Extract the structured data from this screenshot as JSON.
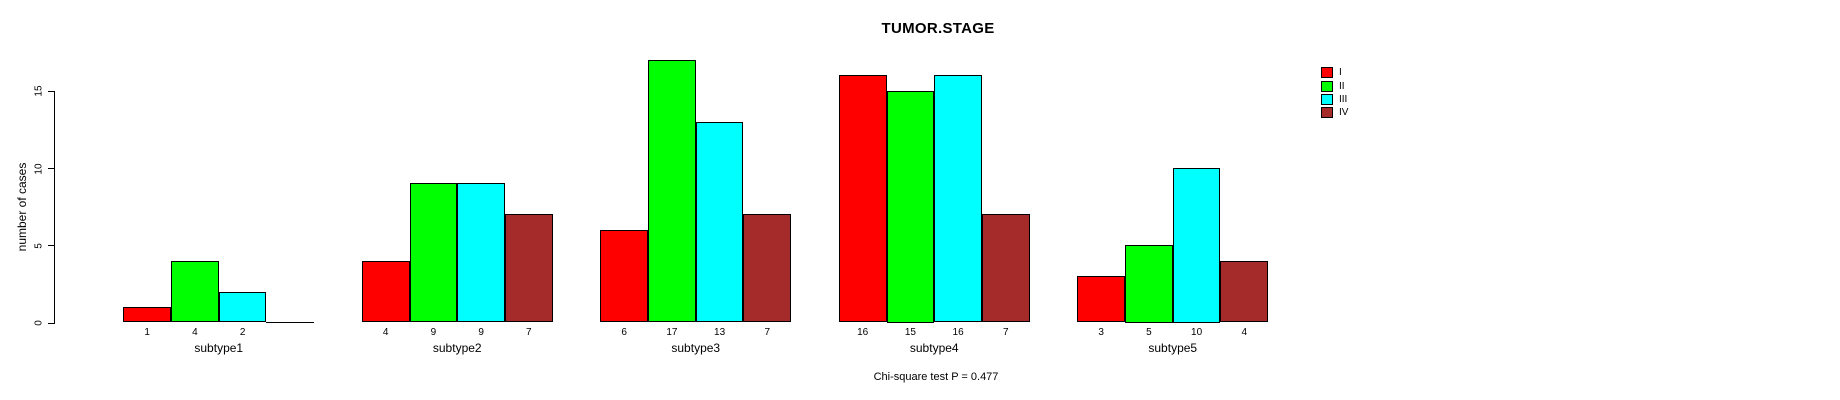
{
  "chart_data": {
    "type": "bar",
    "title": "TUMOR.STAGE",
    "ylabel": "number of cases",
    "xlabel": "",
    "categories": [
      "subtype1",
      "subtype2",
      "subtype3",
      "subtype4",
      "subtype5"
    ],
    "series": [
      {
        "name": "I",
        "color": "#FF0000",
        "values": [
          1,
          4,
          6,
          16,
          3
        ]
      },
      {
        "name": "II",
        "color": "#00FF00",
        "values": [
          4,
          9,
          17,
          15,
          5
        ]
      },
      {
        "name": "III",
        "color": "#00FFFF",
        "values": [
          2,
          9,
          13,
          16,
          10
        ]
      },
      {
        "name": "IV",
        "color": "#A52A2A",
        "values": [
          0,
          7,
          7,
          7,
          4
        ]
      }
    ],
    "yticks": [
      0,
      5,
      10,
      15
    ],
    "ylim": [
      0,
      17
    ],
    "grid": false,
    "legend_position": "top-right",
    "bar_value_labels_shown": true,
    "zero_value_labels_hidden": true,
    "annotation": "Chi-square test P = 0.477"
  }
}
